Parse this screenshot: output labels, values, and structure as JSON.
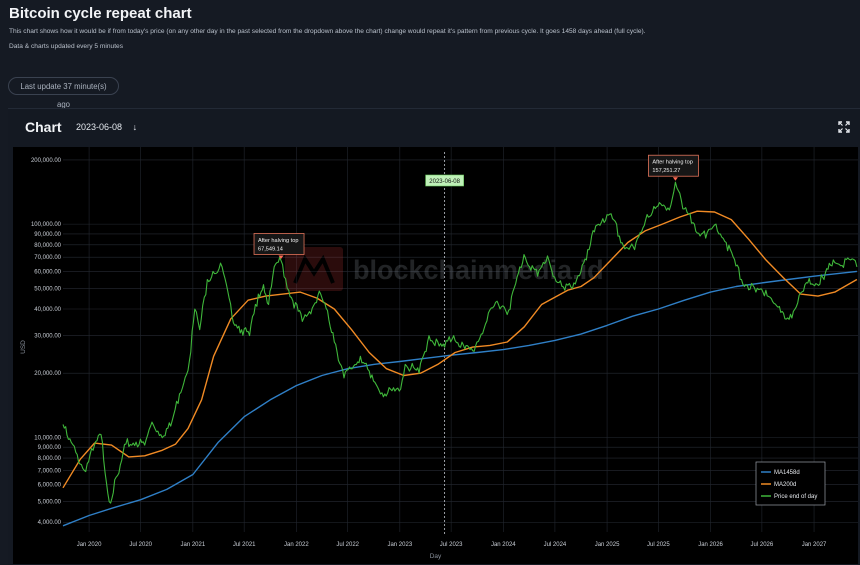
{
  "header": {
    "title": "Bitcoin cycle repeat chart",
    "description": "This chart shows how it would be if from today's price (on any other day in the past selected from the dropdown above the chart) change would repeat it's pattern from previous cycle. It goes 1458 days ahead (full cycle).",
    "update_note": "Data & charts updated every 5 minutes",
    "last_update": "Last update 37 minute(s) ago"
  },
  "panel": {
    "title": "Chart",
    "selected_date": "2023-06-08",
    "dropdown_icon": "arrow-down-icon",
    "expand_icon": "expand-icon"
  },
  "watermark": "blockchainmedia.id",
  "chart_data": {
    "type": "line",
    "xlabel": "Day",
    "ylabel": "USD",
    "yscale": "log",
    "ylim": [
      3600,
      230000
    ],
    "xlim": [
      "2019-10-01",
      "2027-06-05"
    ],
    "x_ticks": [
      "Jan 2020",
      "Jul 2020",
      "Jan 2021",
      "Jul 2021",
      "Jan 2022",
      "Jul 2022",
      "Jan 2023",
      "Jul 2023",
      "Jan 2024",
      "Jul 2024",
      "Jan 2025",
      "Jul 2025",
      "Jan 2026",
      "Jul 2026",
      "Jan 2027"
    ],
    "y_ticks": [
      "200,000.00",
      "100,000.00",
      "90,000.00",
      "80,000.00",
      "70,000.00",
      "60,000.00",
      "50,000.00",
      "40,000.00",
      "30,000.00",
      "20,000.00",
      "10,000.00",
      "9,000.00",
      "8,000.00",
      "7,000.00",
      "6,000.00",
      "5,000.00",
      "4,000.00"
    ],
    "y_tick_values": [
      200000,
      100000,
      90000,
      80000,
      70000,
      60000,
      50000,
      40000,
      30000,
      20000,
      10000,
      9000,
      8000,
      7000,
      6000,
      5000,
      4000
    ],
    "vertical_marker": {
      "date": "2023-06-08",
      "label": "2023-06-08"
    },
    "annotations": [
      {
        "date": "2021-11-08",
        "value": 67549.14,
        "label": "After halving top",
        "value_label": "67,549.14"
      },
      {
        "date": "2025-08-30",
        "value": 157251.27,
        "label": "After halving top",
        "value_label": "157,251.27"
      }
    ],
    "legend": {
      "position": "bottom-right",
      "entries": [
        "MA1458d",
        "MA200d",
        "Price end of day"
      ]
    },
    "series": [
      {
        "name": "Price end of day",
        "color": "#3fb63a",
        "points": [
          [
            "2019-10-01",
            11500
          ],
          [
            "2019-10-20",
            9800
          ],
          [
            "2019-11-15",
            8500
          ],
          [
            "2019-12-15",
            7000
          ],
          [
            "2020-01-15",
            8700
          ],
          [
            "2020-02-12",
            10300
          ],
          [
            "2020-03-12",
            5000
          ],
          [
            "2020-04-15",
            6800
          ],
          [
            "2020-05-10",
            9300
          ],
          [
            "2020-06-15",
            9500
          ],
          [
            "2020-07-15",
            9200
          ],
          [
            "2020-08-10",
            11800
          ],
          [
            "2020-09-10",
            10300
          ],
          [
            "2020-10-15",
            11300
          ],
          [
            "2020-11-15",
            16000
          ],
          [
            "2020-12-20",
            23000
          ],
          [
            "2021-01-08",
            40000
          ],
          [
            "2021-01-25",
            32000
          ],
          [
            "2021-02-21",
            55000
          ],
          [
            "2021-03-13",
            60000
          ],
          [
            "2021-04-14",
            63000
          ],
          [
            "2021-05-19",
            37000
          ],
          [
            "2021-06-22",
            32000
          ],
          [
            "2021-07-20",
            30000
          ],
          [
            "2021-08-20",
            47000
          ],
          [
            "2021-09-07",
            52000
          ],
          [
            "2021-09-25",
            42000
          ],
          [
            "2021-10-20",
            65000
          ],
          [
            "2021-11-08",
            67549
          ],
          [
            "2021-12-05",
            49000
          ],
          [
            "2022-01-22",
            35000
          ],
          [
            "2022-03-28",
            47000
          ],
          [
            "2022-05-10",
            31000
          ],
          [
            "2022-06-18",
            19000
          ],
          [
            "2022-08-15",
            24000
          ],
          [
            "2022-09-20",
            19000
          ],
          [
            "2022-11-09",
            16000
          ],
          [
            "2022-12-30",
            16500
          ],
          [
            "2023-01-20",
            22000
          ],
          [
            "2023-03-10",
            20000
          ],
          [
            "2023-04-14",
            30000
          ],
          [
            "2023-05-20",
            26800
          ],
          [
            "2023-06-08",
            26500
          ],
          [
            "2023-07-10",
            30000
          ],
          [
            "2023-08-18",
            26000
          ],
          [
            "2023-09-15",
            25500
          ],
          [
            "2023-10-30",
            34000
          ],
          [
            "2023-12-10",
            43500
          ],
          [
            "2024-01-20",
            39500
          ],
          [
            "2024-03-14",
            72000
          ],
          [
            "2024-05-01",
            57000
          ],
          [
            "2024-06-05",
            71000
          ],
          [
            "2024-07-05",
            54000
          ],
          [
            "2024-08-05",
            49000
          ],
          [
            "2024-09-06",
            53000
          ],
          [
            "2024-10-20",
            68000
          ],
          [
            "2024-11-22",
            98000
          ],
          [
            "2024-12-17",
            106000
          ],
          [
            "2025-01-20",
            106000
          ],
          [
            "2025-02-28",
            79000
          ],
          [
            "2025-04-08",
            76000
          ],
          [
            "2025-05-22",
            111000
          ],
          [
            "2025-07-14",
            122000
          ],
          [
            "2025-08-14",
            123000
          ],
          [
            "2025-08-30",
            157251
          ],
          [
            "2025-09-25",
            118000
          ],
          [
            "2025-11-05",
            100000
          ],
          [
            "2025-12-15",
            86000
          ],
          [
            "2026-01-20",
            100000
          ],
          [
            "2026-02-25",
            82000
          ],
          [
            "2026-04-20",
            55000
          ],
          [
            "2026-06-10",
            48000
          ],
          [
            "2026-07-15",
            49000
          ],
          [
            "2026-09-20",
            36000
          ],
          [
            "2026-10-20",
            39000
          ],
          [
            "2026-12-10",
            53000
          ],
          [
            "2027-02-05",
            55000
          ],
          [
            "2027-03-10",
            68000
          ],
          [
            "2027-04-10",
            64000
          ],
          [
            "2027-05-10",
            68000
          ],
          [
            "2027-06-01",
            63000
          ]
        ]
      },
      {
        "name": "MA200d",
        "color": "#f08a24",
        "points": [
          [
            "2019-10-01",
            5800
          ],
          [
            "2019-12-01",
            7900
          ],
          [
            "2020-01-20",
            9400
          ],
          [
            "2020-03-20",
            9200
          ],
          [
            "2020-05-20",
            8100
          ],
          [
            "2020-07-15",
            8200
          ],
          [
            "2020-09-15",
            8700
          ],
          [
            "2020-11-01",
            9300
          ],
          [
            "2020-12-15",
            11000
          ],
          [
            "2021-02-01",
            15000
          ],
          [
            "2021-03-15",
            24000
          ],
          [
            "2021-05-15",
            36000
          ],
          [
            "2021-07-15",
            44000
          ],
          [
            "2021-09-15",
            46000
          ],
          [
            "2021-11-15",
            47000
          ],
          [
            "2022-01-15",
            48000
          ],
          [
            "2022-03-15",
            45000
          ],
          [
            "2022-05-15",
            40000
          ],
          [
            "2022-07-15",
            32000
          ],
          [
            "2022-09-15",
            25000
          ],
          [
            "2022-11-15",
            21000
          ],
          [
            "2023-01-15",
            19500
          ],
          [
            "2023-03-15",
            20000
          ],
          [
            "2023-05-15",
            22000
          ],
          [
            "2023-07-15",
            25000
          ],
          [
            "2023-09-15",
            26500
          ],
          [
            "2023-11-15",
            27000
          ],
          [
            "2024-01-15",
            28000
          ],
          [
            "2024-03-15",
            33000
          ],
          [
            "2024-05-15",
            42000
          ],
          [
            "2024-08-15",
            49000
          ],
          [
            "2024-10-01",
            51000
          ],
          [
            "2024-11-15",
            56000
          ],
          [
            "2025-01-15",
            68000
          ],
          [
            "2025-03-15",
            82000
          ],
          [
            "2025-05-15",
            93000
          ],
          [
            "2025-07-15",
            100000
          ],
          [
            "2025-09-15",
            108000
          ],
          [
            "2025-11-15",
            115000
          ],
          [
            "2026-01-15",
            114000
          ],
          [
            "2026-03-15",
            105000
          ],
          [
            "2026-05-15",
            85000
          ],
          [
            "2026-07-15",
            68000
          ],
          [
            "2026-09-15",
            56000
          ],
          [
            "2026-11-15",
            47000
          ],
          [
            "2027-01-15",
            46000
          ],
          [
            "2027-03-15",
            48000
          ],
          [
            "2027-06-01",
            55000
          ]
        ]
      },
      {
        "name": "MA1458d",
        "color": "#2f7fc6",
        "points": [
          [
            "2019-10-01",
            3850
          ],
          [
            "2020-01-01",
            4300
          ],
          [
            "2020-04-01",
            4700
          ],
          [
            "2020-07-01",
            5100
          ],
          [
            "2020-10-01",
            5700
          ],
          [
            "2021-01-01",
            6700
          ],
          [
            "2021-04-01",
            9500
          ],
          [
            "2021-07-01",
            12500
          ],
          [
            "2021-10-01",
            15000
          ],
          [
            "2022-01-01",
            17500
          ],
          [
            "2022-04-01",
            19500
          ],
          [
            "2022-07-01",
            21000
          ],
          [
            "2022-10-01",
            22000
          ],
          [
            "2023-01-01",
            22700
          ],
          [
            "2023-04-01",
            23500
          ],
          [
            "2023-07-01",
            24300
          ],
          [
            "2023-10-01",
            25000
          ],
          [
            "2024-01-01",
            25800
          ],
          [
            "2024-04-01",
            27000
          ],
          [
            "2024-07-01",
            28500
          ],
          [
            "2024-10-01",
            30500
          ],
          [
            "2025-01-01",
            33500
          ],
          [
            "2025-04-01",
            37000
          ],
          [
            "2025-07-01",
            40000
          ],
          [
            "2025-10-01",
            44000
          ],
          [
            "2026-01-01",
            48000
          ],
          [
            "2026-04-01",
            51000
          ],
          [
            "2026-07-01",
            53000
          ],
          [
            "2026-10-01",
            55000
          ],
          [
            "2027-01-01",
            57000
          ],
          [
            "2027-06-01",
            60000
          ]
        ]
      }
    ]
  }
}
